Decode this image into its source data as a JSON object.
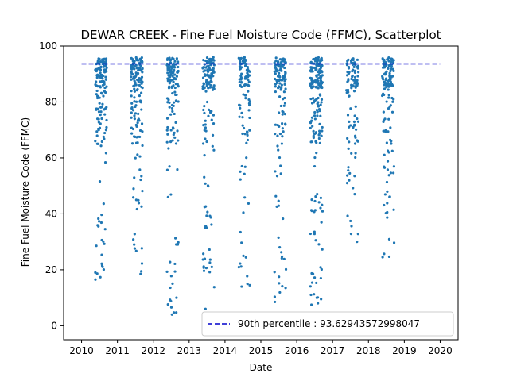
{
  "chart_data": {
    "type": "scatter",
    "title": "DEWAR CREEK - Fine Fuel Moisture Code (FFMC), Scatterplot",
    "xlabel": "Date",
    "ylabel": "Fine Fuel Moisture Code (FFMC)",
    "xlim": [
      2009.5,
      2020.5
    ],
    "ylim": [
      -5,
      100
    ],
    "xticks": [
      2010,
      2011,
      2012,
      2013,
      2014,
      2015,
      2016,
      2017,
      2018,
      2019,
      2020
    ],
    "yticks": [
      0,
      20,
      40,
      60,
      80,
      100
    ],
    "legend": {
      "placement": "lower-right",
      "entries": [
        "90th percentile : 93.62943572998047"
      ]
    },
    "reference_line": {
      "name": "90th percentile : 93.62943572998047",
      "value": 93.62943572998047,
      "x_range": [
        2010,
        2020
      ],
      "style": "dashed",
      "color": "#0000cc"
    },
    "series_color": "#1f77b4",
    "seasons": [
      {
        "year": 2010,
        "start": 2010.38,
        "end": 2010.7,
        "n": 150,
        "min": 16.5
      },
      {
        "year": 2011,
        "start": 2011.38,
        "end": 2011.7,
        "n": 150,
        "min": 18.5
      },
      {
        "year": 2012,
        "start": 2012.38,
        "end": 2012.7,
        "n": 140,
        "min": 4.0
      },
      {
        "year": 2013,
        "start": 2013.38,
        "end": 2013.7,
        "n": 150,
        "min": 6.0
      },
      {
        "year": 2014,
        "start": 2014.38,
        "end": 2014.7,
        "n": 110,
        "min": 14.0
      },
      {
        "year": 2015,
        "start": 2015.38,
        "end": 2015.7,
        "n": 130,
        "min": 8.5
      },
      {
        "year": 2016,
        "start": 2016.38,
        "end": 2016.72,
        "n": 200,
        "min": 7.5
      },
      {
        "year": 2017,
        "start": 2017.38,
        "end": 2017.72,
        "n": 110,
        "min": 30.0
      },
      {
        "year": 2018,
        "start": 2018.38,
        "end": 2018.72,
        "n": 140,
        "min": 24.5
      }
    ]
  }
}
